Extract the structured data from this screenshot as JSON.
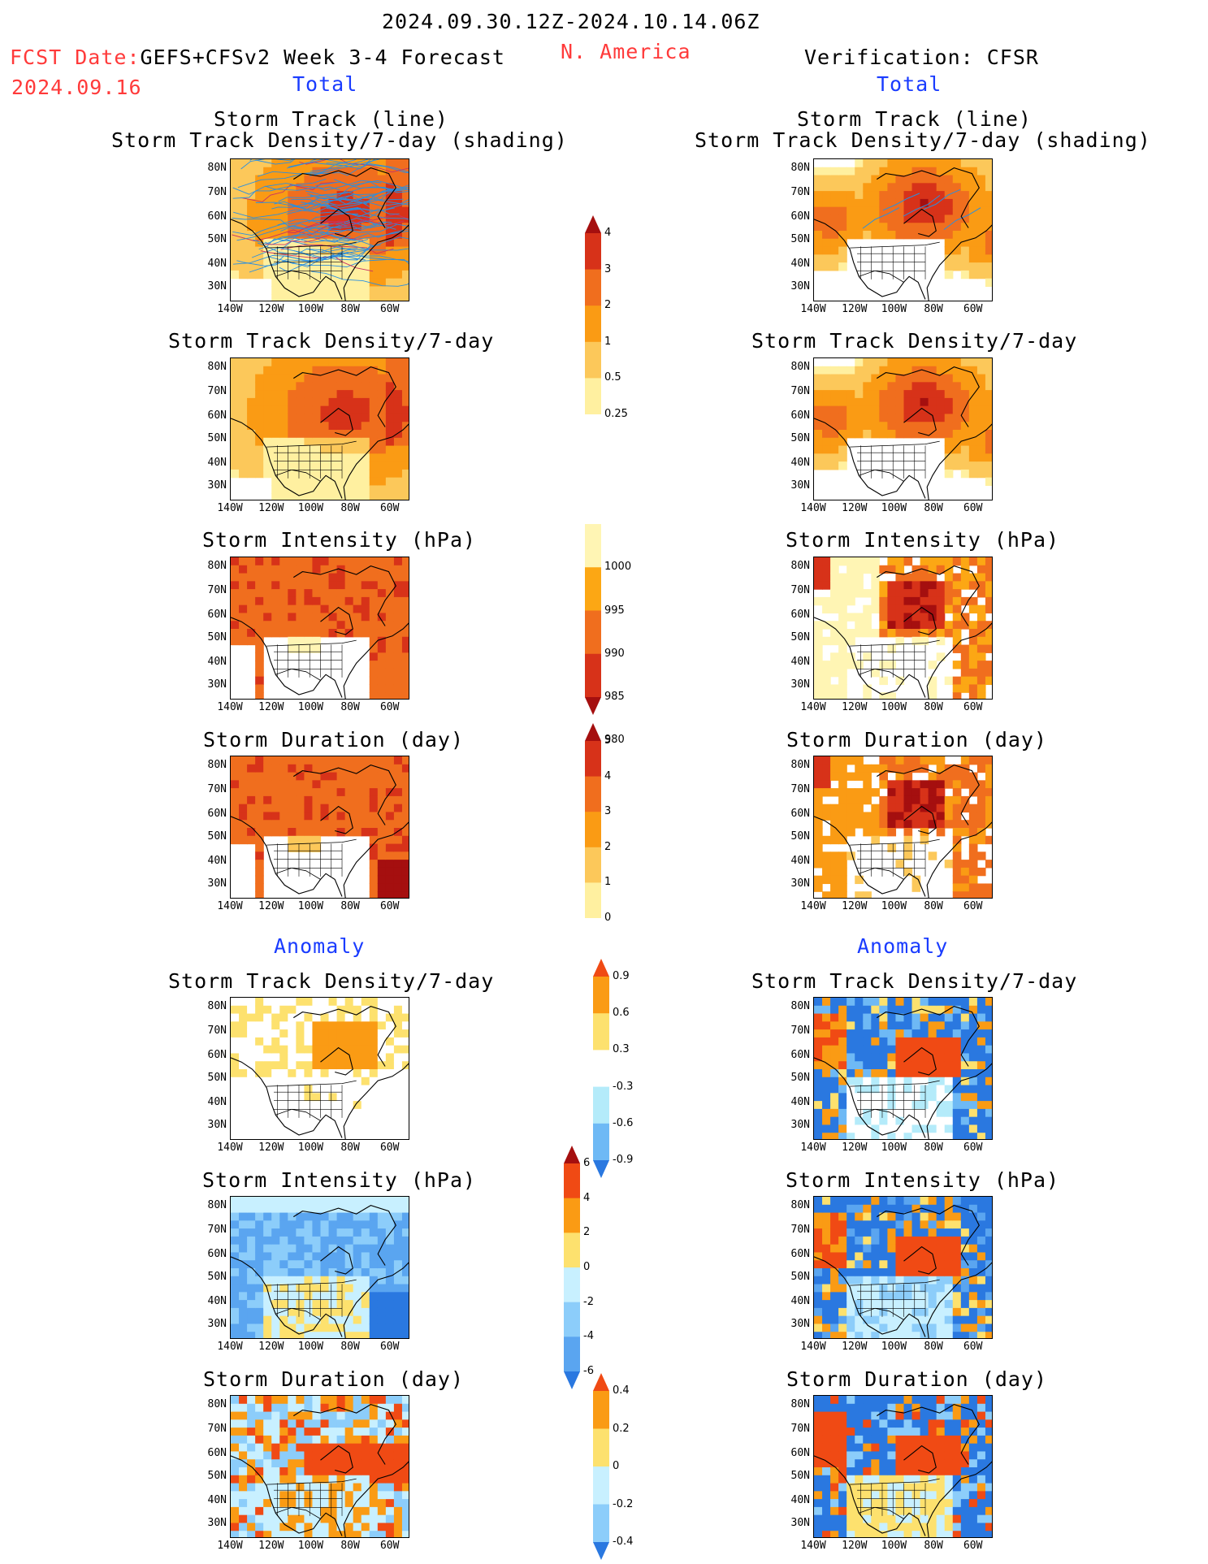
{
  "header": {
    "period": "2024.09.30.12Z-2024.10.14.06Z",
    "fcst_label": "FCST Date:",
    "forecast_name": "GEFS+CFSv2 Week 3-4 Forecast",
    "region": "N. America",
    "verification": "Verification: CFSR",
    "fcst_date": "2024.09.16",
    "total_left": "Total",
    "total_right": "Total",
    "anomaly_left": "Anomaly",
    "anomaly_right": "Anomaly"
  },
  "titles": {
    "track_line": "Storm Track (line)",
    "track_shading": "Storm Track Density/7-day (shading)",
    "density": "Storm Track Density/7-day",
    "intensity": "Storm Intensity (hPa)",
    "duration": "Storm Duration (day)"
  },
  "axes": {
    "lat": [
      "80N",
      "70N",
      "60N",
      "50N",
      "40N",
      "30N"
    ],
    "lon": [
      "140W",
      "120W",
      "100W",
      "80W",
      "60W"
    ]
  },
  "colorbars": {
    "density": {
      "labels": [
        "4",
        "3",
        "2",
        "1",
        "0.5",
        "0.25"
      ],
      "colors": [
        "#a50f0f",
        "#d73219",
        "#f06e1e",
        "#fa9b14",
        "#fcc85a",
        "#fff0a0"
      ]
    },
    "intensity": {
      "labels": [
        "1000",
        "995",
        "990",
        "985",
        "980"
      ],
      "colors": [
        "#fff5b4",
        "#fca714",
        "#f06e1e",
        "#d73219",
        "#a50f0f"
      ]
    },
    "duration": {
      "labels": [
        "5",
        "4",
        "3",
        "2",
        "1",
        "0"
      ],
      "colors": [
        "#a50f0f",
        "#d73219",
        "#f06e1e",
        "#fa9b14",
        "#fcc85a",
        "#fff0a0"
      ]
    },
    "density_anom": {
      "labels": [
        "0.9",
        "0.6",
        "0.3",
        "-0.3",
        "-0.6",
        "-0.9"
      ],
      "colors": [
        "#f04a14",
        "#fa9b14",
        "#fde16e",
        "#ffffff",
        "#b4ebfa",
        "#6eb9f5",
        "#2a78e0"
      ]
    },
    "intensity_anom": {
      "labels": [
        "6",
        "4",
        "2",
        "0",
        "-2",
        "-4",
        "-6"
      ],
      "colors": [
        "#a50f0f",
        "#f04a14",
        "#fa9b14",
        "#fde16e",
        "#c8f0ff",
        "#8ccdfa",
        "#5aa5f0",
        "#2a78e0"
      ]
    },
    "duration_anom": {
      "labels": [
        "0.4",
        "0.2",
        "0",
        "-0.2",
        "-0.4"
      ],
      "colors": [
        "#f04a14",
        "#fa9b14",
        "#fde16e",
        "#c8f0ff",
        "#8ccdfa",
        "#2a78e0"
      ]
    }
  },
  "colors": {
    "header_red": "#ff3a3a",
    "header_blue": "#1a3cff",
    "track_line": "#2a8fe0"
  }
}
